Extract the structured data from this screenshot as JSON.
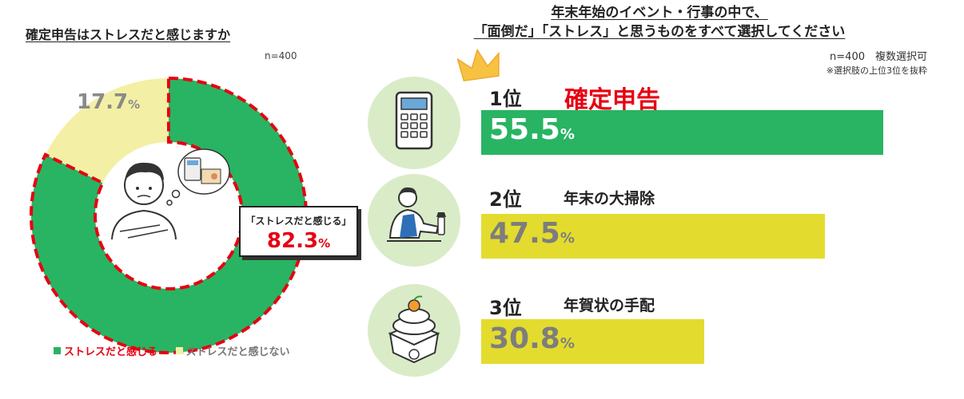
{
  "left": {
    "title": "確定申告はストレスだと感じますか",
    "n_label": "n=400",
    "callout_label": "「ストレスだと感じる」",
    "pct_suffix": "%",
    "legend": [
      {
        "label": "ストレスだと感じる",
        "color": "#28b463"
      },
      {
        "label": "ストレスだと感じない",
        "color": "#f3f0a5"
      }
    ],
    "colors": {
      "stress": "#28b463",
      "no_stress": "#f3f0a5",
      "dash": "#e60012",
      "highlight": "#e60012"
    }
  },
  "right": {
    "title_line1": "年末年始のイベント・行事の中で、",
    "title_line2": "「面倒だ」「ストレス」と思うものをすべて選択してください",
    "n_label": "n=400　複数選択可",
    "note": "※選択肢の上位3位を抜粋",
    "pct_suffix": "%",
    "ranks": [
      {
        "rank": "1位",
        "label": "確定申告",
        "icon": "calculator-icon"
      },
      {
        "rank": "2位",
        "label": "年末の大掃除",
        "icon": "cleaning-person-icon"
      },
      {
        "rank": "3位",
        "label": "年賀状の手配",
        "icon": "kagami-mochi-icon"
      }
    ],
    "colors": {
      "first": "#28b463",
      "others": "#e3dc2e",
      "circle": "#d9ecc7"
    }
  },
  "chart_data": [
    {
      "type": "pie",
      "title": "確定申告はストレスだと感じますか",
      "categories": [
        "ストレスだと感じる",
        "ストレスだと感じない"
      ],
      "values": [
        82.3,
        17.7
      ],
      "unit": "%",
      "n": "n=400",
      "legend": "bottom-left"
    },
    {
      "type": "bar",
      "title": "年末年始のイベント・行事の中で、「面倒だ」「ストレス」と思うものをすべて選択してください",
      "categories": [
        "確定申告",
        "年末の大掃除",
        "年賀状の手配"
      ],
      "values": [
        55.5,
        47.5,
        30.8
      ],
      "unit": "%",
      "orientation": "horizontal",
      "xlim": [
        0,
        58.5
      ]
    }
  ]
}
